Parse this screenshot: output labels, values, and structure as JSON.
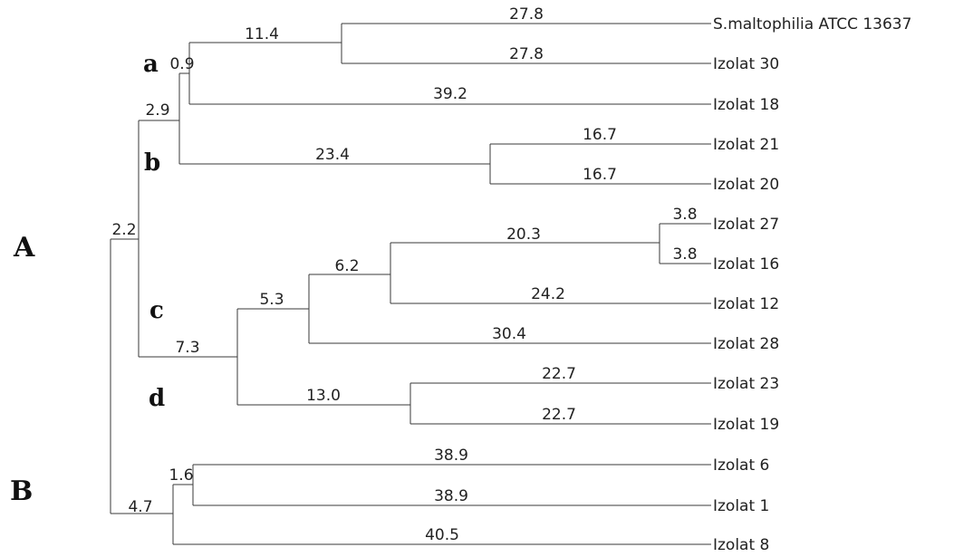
{
  "tree": {
    "taxa": [
      "S.maltophilia ATCC 13637",
      "Izolat 30",
      "Izolat 18",
      "Izolat 21",
      "Izolat 20",
      "Izolat 27",
      "Izolat 16",
      "Izolat 12",
      "Izolat 28",
      "Izolat 23",
      "Izolat 19",
      "Izolat 6",
      "Izolat 1",
      "Izolat 8"
    ],
    "branch_lengths": {
      "s_malto": "27.8",
      "izolat_30": "27.8",
      "node_30_malto": "11.4",
      "node_a_inner": "0.9",
      "izolat_18": "39.2",
      "node_ab": "2.9",
      "izolat_21": "16.7",
      "izolat_20": "16.7",
      "node_b": "23.4",
      "izolat_27": "3.8",
      "izolat_16": "3.8",
      "node_27_16": "20.3",
      "izolat_12": "24.2",
      "node_6_2": "6.2",
      "izolat_28": "30.4",
      "node_5_3": "5.3",
      "izolat_23": "22.7",
      "izolat_19": "22.7",
      "node_d": "13.0",
      "node_cd": "7.3",
      "node_A": "2.2",
      "izolat_6": "38.9",
      "izolat_1": "38.9",
      "node_6_1": "1.6",
      "izolat_8": "40.5",
      "node_B": "4.7"
    },
    "cluster_labels": {
      "a": "a",
      "b": "b",
      "c": "c",
      "d": "d",
      "A": "A",
      "B": "B"
    }
  }
}
